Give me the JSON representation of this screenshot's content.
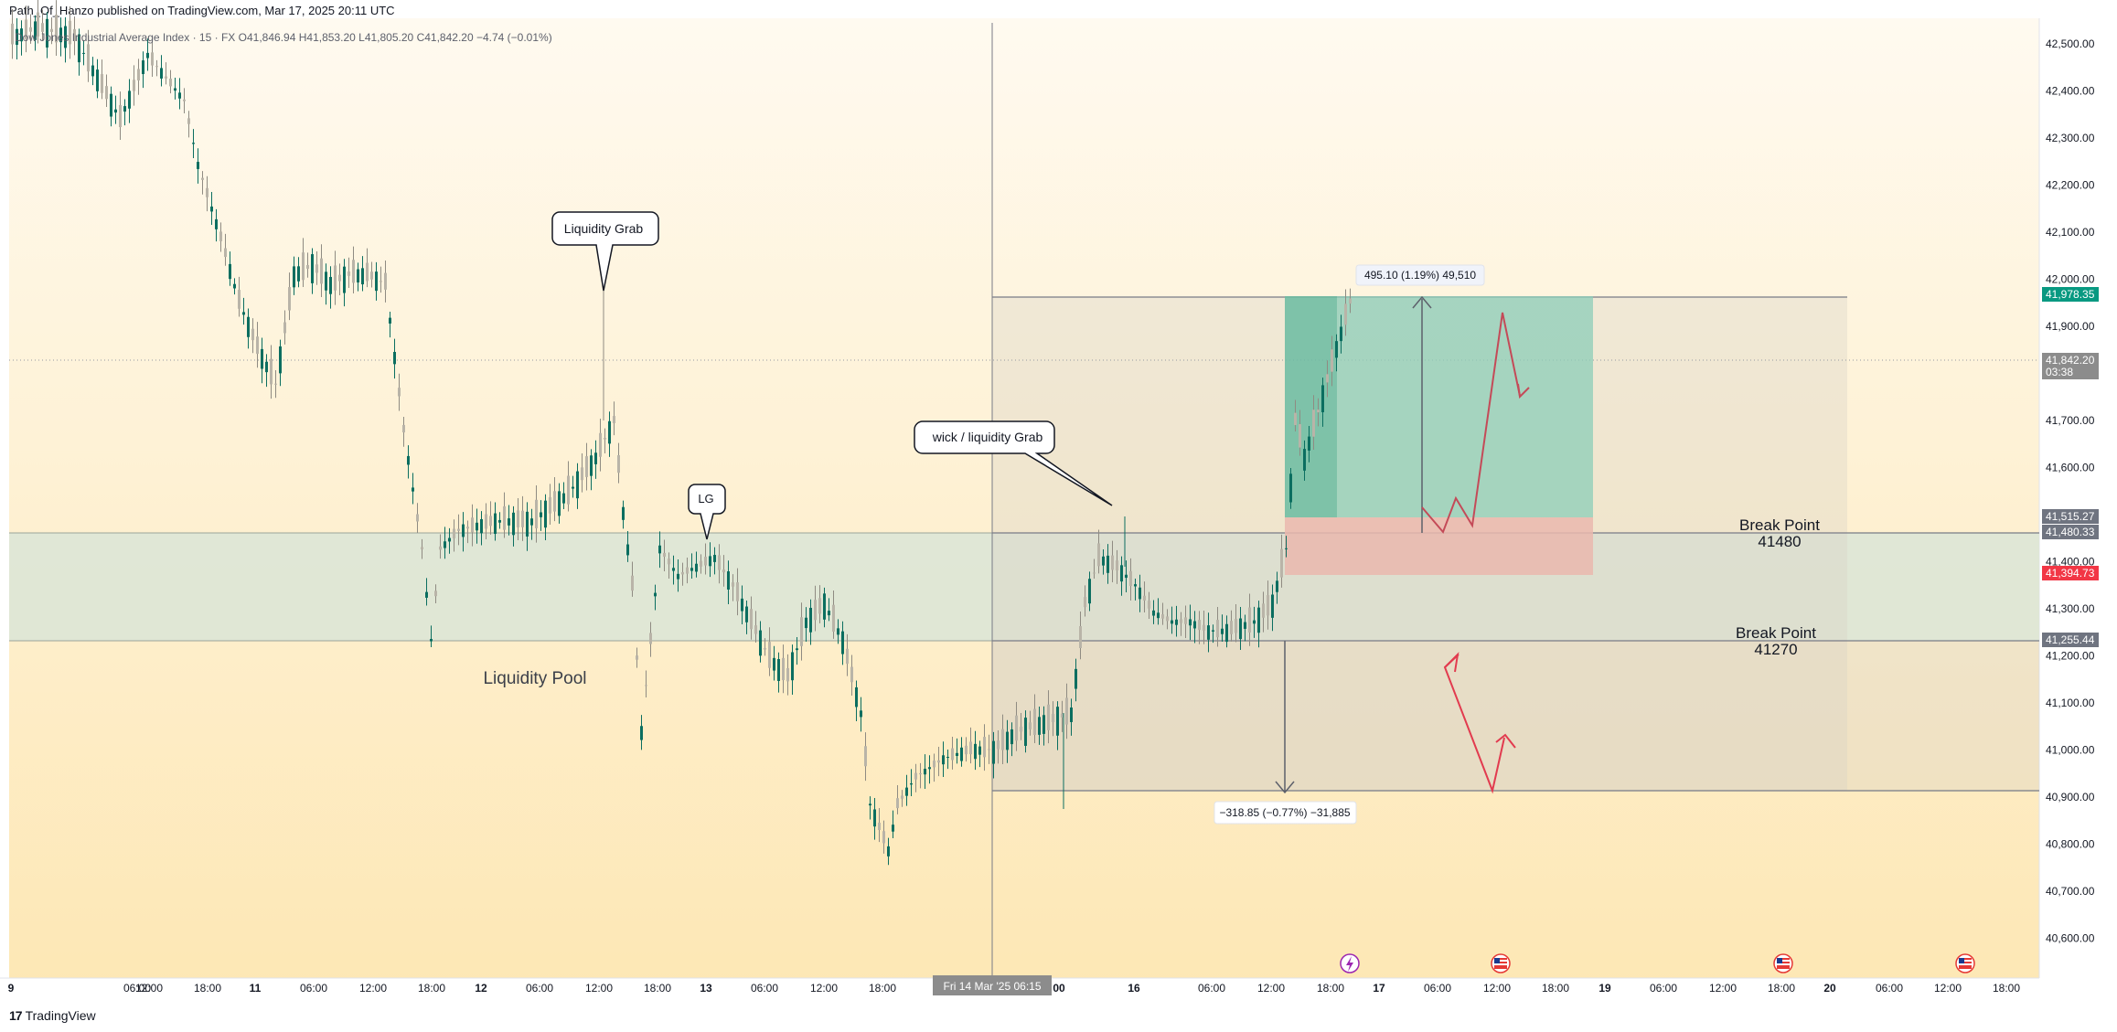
{
  "publish_line": "Path_Of_Hanzo published on TradingView.com, Mar 17, 2025 20:11 UTC",
  "symbol": {
    "name": "Dow Jones Industrial Average Index",
    "interval": "15",
    "source": "FX",
    "open_label": "O",
    "open": "41,846.94",
    "high_label": "H",
    "high": "41,853.20",
    "low_label": "L",
    "low": "41,805.20",
    "close_label": "C",
    "close": "41,842.20",
    "change": "−4.74 (−0.01%)"
  },
  "colors": {
    "up": "#089981",
    "down": "#f23645",
    "liquidity_zone": "#dde6d6",
    "range_box": "#e9e2d5",
    "profit": "#8ccdb8",
    "loss": "#eab9ae",
    "arrow": "#d9525e"
  },
  "price_axis": {
    "ticks": [
      "42,500.00",
      "42,400.00",
      "42,300.00",
      "42,200.00",
      "42,100.00",
      "42,000.00",
      "41,900.00",
      "41,800.00",
      "41,700.00",
      "41,600.00",
      "41,500.00",
      "41,400.00",
      "41,300.00",
      "41,200.00",
      "41,100.00",
      "41,000.00",
      "40,900.00",
      "40,800.00",
      "40,700.00",
      "40,600.00"
    ],
    "badges": [
      {
        "text": "41,978.35",
        "bg": "#089981",
        "fg": "#ffffff"
      },
      {
        "text": "41,842.20",
        "bg": "#8c8c8c",
        "fg": "#ffffff"
      },
      {
        "text": "03:38",
        "bg": "#8c8c8c",
        "fg": "#ffffff"
      },
      {
        "text": "41,515.27",
        "bg": "#6f7480",
        "fg": "#ffffff"
      },
      {
        "text": "41,480.33",
        "bg": "#6f7480",
        "fg": "#ffffff"
      },
      {
        "text": "41,394.73",
        "bg": "#f23645",
        "fg": "#ffffff"
      },
      {
        "text": "41,255.44",
        "bg": "#6f7480",
        "fg": "#ffffff"
      }
    ]
  },
  "time_axis": {
    "ticks": [
      "9",
      "06:00",
      "12:00",
      "18:00",
      "11",
      "06:00",
      "12:00",
      "18:00",
      "12",
      "06:00",
      "12:00",
      "18:00",
      "13",
      "06:00",
      "12:00",
      "18:00",
      "14",
      "00",
      "16",
      "06:00",
      "12:00",
      "18:00",
      "17",
      "06:00",
      "12:00",
      "18:00",
      "19",
      "06:00",
      "12:00",
      "18:00",
      "20",
      "06:00",
      "12:00",
      "18:00"
    ],
    "crosshair_label": "Fri 14 Mar '25   06:15"
  },
  "annotations": {
    "liquidity_grab": "Liquidity Grab",
    "lg": "LG",
    "wick_grab": "wick /  liquidity Grab",
    "liquidity_pool": "Liquidity Pool",
    "break_point_1_title": "Break Point",
    "break_point_1_value": "41480",
    "break_point_2_title": "Break Point",
    "break_point_2_value": "41270",
    "measure_up": "495.10 (1.19%) 49,510",
    "measure_down": "−318.85 (−0.77%) −31,885"
  },
  "event_icons": [
    "lightning-icon",
    "us-flag-icon",
    "us-flag-icon",
    "us-flag-icon"
  ],
  "footer": {
    "logo": "TradingView"
  }
}
